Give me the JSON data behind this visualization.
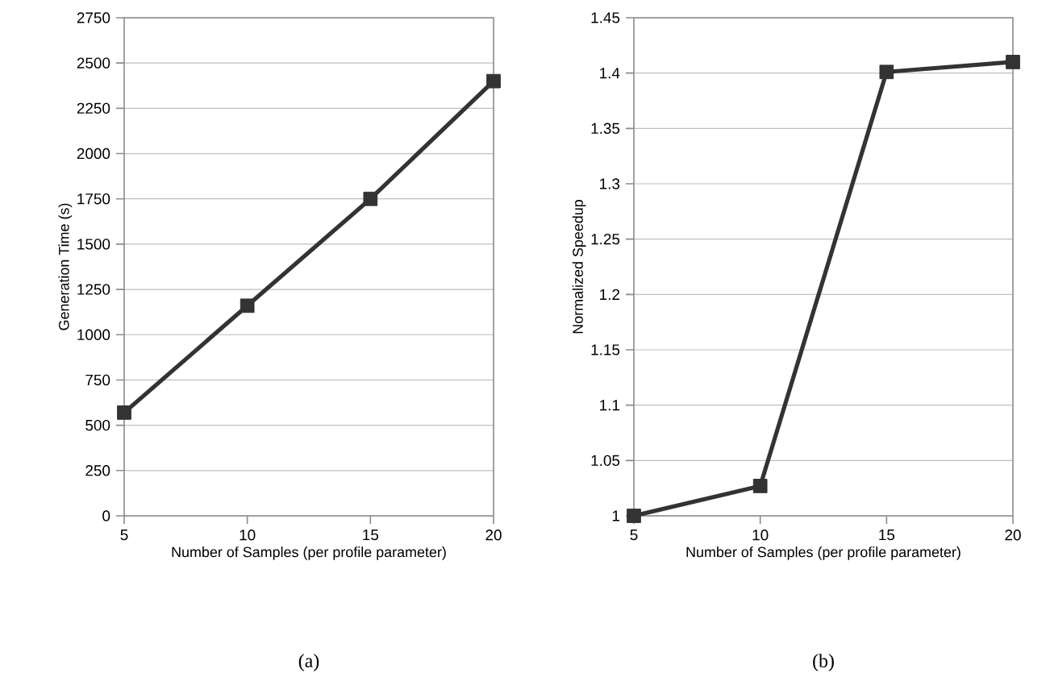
{
  "chart_data": [
    {
      "type": "line",
      "title": "(a)",
      "xlabel": "Number of Samples (per profile parameter)",
      "ylabel": "Generation Time (s)",
      "x": [
        5,
        10,
        15,
        20
      ],
      "series": [
        {
          "color": "#333333",
          "values": [
            570,
            1160,
            1750,
            2400
          ]
        }
      ],
      "xlim": [
        5,
        20
      ],
      "xticks": [
        5,
        10,
        15,
        20
      ],
      "ylim": [
        0,
        2750
      ],
      "yticks": [
        0,
        250,
        500,
        750,
        1000,
        1250,
        1500,
        1750,
        2000,
        2250,
        2500,
        2750
      ],
      "grid": "y",
      "marker": "square",
      "line_style": "solid"
    },
    {
      "type": "line",
      "title": "(b)",
      "xlabel": "Number of Samples (per profile parameter)",
      "ylabel": "Normalized Speedup",
      "x": [
        5,
        10,
        15,
        20
      ],
      "series": [
        {
          "color": "#333333",
          "values": [
            1.0,
            1.027,
            1.401,
            1.41
          ]
        }
      ],
      "xlim": [
        5,
        20
      ],
      "xticks": [
        5,
        10,
        15,
        20
      ],
      "ylim": [
        1,
        1.45
      ],
      "yticks": [
        1,
        1.05,
        1.1,
        1.15,
        1.2,
        1.25,
        1.3,
        1.35,
        1.4,
        1.45
      ],
      "grid": "y",
      "marker": "square",
      "line_style": "solid"
    }
  ]
}
